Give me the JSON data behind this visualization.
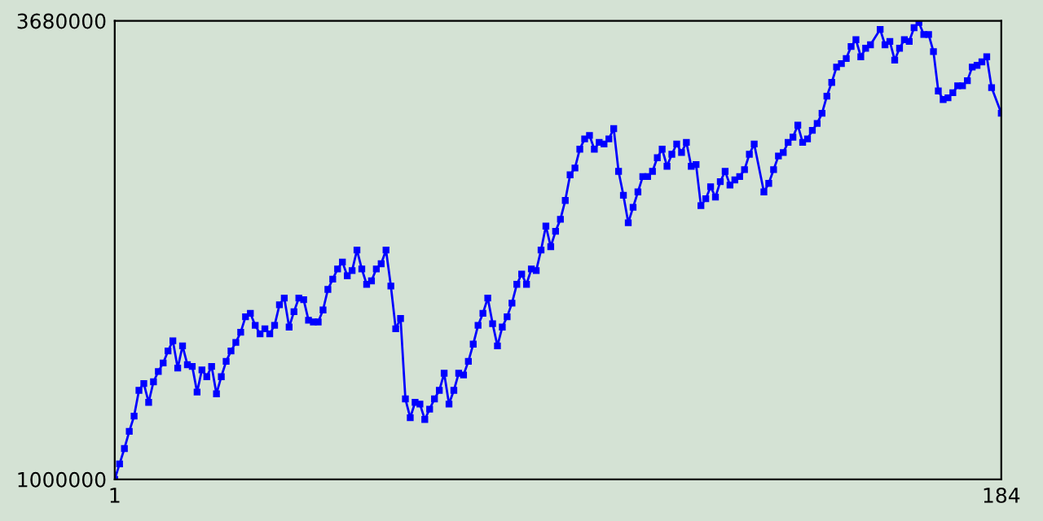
{
  "chart_data": {
    "type": "line",
    "marker": "square",
    "line_style": "solid",
    "grid": false,
    "legend": false,
    "xlim": [
      1,
      184
    ],
    "xticks": [
      1,
      184
    ],
    "ylim": [
      1000000,
      3680000
    ],
    "yticks": [
      1000000,
      3680000
    ],
    "series": [
      {
        "color": "#0000ff",
        "x": [
          1,
          2,
          3,
          4,
          5,
          6,
          7,
          8,
          9,
          10,
          11,
          12,
          13,
          14,
          15,
          16,
          17,
          18,
          19,
          20,
          21,
          22,
          23,
          24,
          25,
          26,
          27,
          28,
          29,
          30,
          31,
          32,
          33,
          34,
          35,
          36,
          37,
          38,
          39,
          40,
          41,
          42,
          43,
          44,
          45,
          46,
          47,
          48,
          49,
          50,
          51,
          52,
          53,
          54,
          55,
          56,
          57,
          58,
          59,
          60,
          61,
          62,
          63,
          64,
          65,
          66,
          67,
          68,
          69,
          70,
          71,
          72,
          73,
          74,
          75,
          76,
          77,
          78,
          79,
          80,
          81,
          82,
          83,
          84,
          85,
          86,
          87,
          88,
          89,
          90,
          91,
          92,
          93,
          94,
          95,
          96,
          97,
          98,
          99,
          100,
          101,
          102,
          103,
          104,
          105,
          106,
          107,
          108,
          109,
          110,
          111,
          112,
          113,
          114,
          115,
          116,
          117,
          118,
          119,
          120,
          121,
          122,
          123,
          124,
          125,
          126,
          127,
          128,
          129,
          130,
          131,
          132,
          133,
          135,
          136,
          137,
          138,
          139,
          140,
          141,
          142,
          143,
          144,
          145,
          146,
          147,
          148,
          149,
          150,
          151,
          152,
          153,
          154,
          155,
          156,
          157,
          159,
          160,
          161,
          162,
          163,
          164,
          165,
          166,
          167,
          168,
          169,
          170,
          171,
          172,
          173,
          174,
          175,
          176,
          177,
          178,
          179,
          180,
          181,
          182,
          184
        ],
        "values": [
          1000000,
          1090000,
          1180000,
          1280000,
          1370000,
          1520000,
          1560000,
          1450000,
          1570000,
          1630000,
          1680000,
          1750000,
          1810000,
          1650000,
          1780000,
          1670000,
          1660000,
          1510000,
          1640000,
          1600000,
          1660000,
          1500000,
          1600000,
          1690000,
          1750000,
          1800000,
          1860000,
          1950000,
          1970000,
          1900000,
          1850000,
          1880000,
          1850000,
          1900000,
          2020000,
          2060000,
          1890000,
          1980000,
          2060000,
          2050000,
          1930000,
          1920000,
          1920000,
          1990000,
          2110000,
          2170000,
          2230000,
          2270000,
          2190000,
          2220000,
          2340000,
          2230000,
          2140000,
          2160000,
          2230000,
          2260000,
          2340000,
          2130000,
          1880000,
          1940000,
          1470000,
          1360000,
          1450000,
          1440000,
          1350000,
          1410000,
          1470000,
          1520000,
          1620000,
          1440000,
          1520000,
          1620000,
          1610000,
          1690000,
          1790000,
          1900000,
          1970000,
          2060000,
          1910000,
          1780000,
          1890000,
          1950000,
          2030000,
          2140000,
          2200000,
          2140000,
          2230000,
          2220000,
          2340000,
          2480000,
          2360000,
          2450000,
          2520000,
          2630000,
          2780000,
          2820000,
          2930000,
          2990000,
          3010000,
          2930000,
          2970000,
          2960000,
          2990000,
          3050000,
          2800000,
          2660000,
          2500000,
          2590000,
          2680000,
          2770000,
          2770000,
          2800000,
          2880000,
          2930000,
          2830000,
          2900000,
          2960000,
          2910000,
          2970000,
          2830000,
          2840000,
          2600000,
          2640000,
          2710000,
          2650000,
          2740000,
          2800000,
          2720000,
          2750000,
          2770000,
          2810000,
          2900000,
          2960000,
          2680000,
          2730000,
          2810000,
          2890000,
          2910000,
          2970000,
          3000000,
          3070000,
          2970000,
          2990000,
          3040000,
          3080000,
          3140000,
          3240000,
          3320000,
          3410000,
          3430000,
          3460000,
          3530000,
          3570000,
          3470000,
          3520000,
          3540000,
          3630000,
          3540000,
          3560000,
          3450000,
          3520000,
          3570000,
          3560000,
          3640000,
          3670000,
          3600000,
          3600000,
          3500000,
          3270000,
          3220000,
          3230000,
          3260000,
          3300000,
          3300000,
          3330000,
          3410000,
          3420000,
          3440000,
          3470000,
          3290000,
          3140000
        ]
      }
    ]
  }
}
